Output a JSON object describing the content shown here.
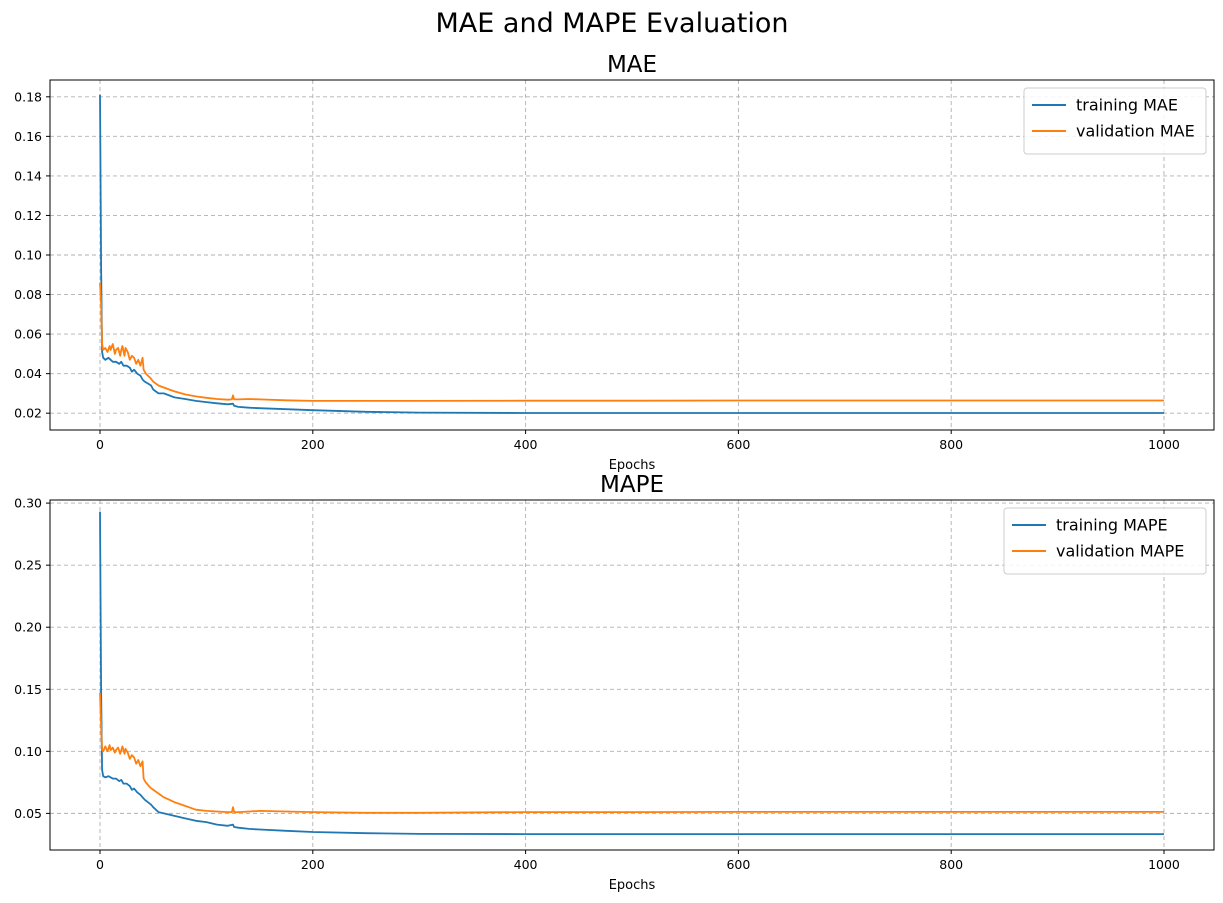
{
  "figure": {
    "title": "MAE and MAPE Evaluation"
  },
  "colors": {
    "training": "#1f77b4",
    "validation": "#ff7f0e",
    "grid": "#b0b0b0"
  },
  "chart_data": [
    {
      "type": "line",
      "title": "MAE",
      "xlabel": "Epochs",
      "ylabel": "",
      "xlim": [
        -47,
        1047
      ],
      "ylim": [
        0.0115,
        0.1885
      ],
      "xticks": [
        0,
        200,
        400,
        600,
        800,
        1000
      ],
      "yticks": [
        0.02,
        0.04,
        0.06,
        0.08,
        0.1,
        0.12,
        0.14,
        0.16,
        0.18
      ],
      "ytick_labels": [
        "0.02",
        "0.04",
        "0.06",
        "0.08",
        "0.10",
        "0.12",
        "0.14",
        "0.16",
        "0.18"
      ],
      "grid": true,
      "legend": "top-right",
      "series": [
        {
          "name": "training MAE",
          "x": [
            0,
            1,
            2,
            3,
            5,
            8,
            10,
            12,
            15,
            18,
            20,
            22,
            25,
            28,
            30,
            32,
            35,
            38,
            40,
            42,
            45,
            48,
            50,
            55,
            60,
            65,
            70,
            80,
            90,
            100,
            110,
            120,
            125,
            126,
            130,
            140,
            150,
            175,
            200,
            250,
            300,
            400,
            500,
            600,
            700,
            800,
            900,
            1000
          ],
          "y": [
            0.181,
            0.095,
            0.051,
            0.048,
            0.047,
            0.048,
            0.047,
            0.046,
            0.046,
            0.045,
            0.046,
            0.044,
            0.044,
            0.043,
            0.041,
            0.042,
            0.04,
            0.039,
            0.037,
            0.036,
            0.035,
            0.034,
            0.032,
            0.03,
            0.03,
            0.029,
            0.028,
            0.0272,
            0.0262,
            0.0256,
            0.025,
            0.0245,
            0.0248,
            0.0238,
            0.0232,
            0.0228,
            0.0225,
            0.022,
            0.0215,
            0.0207,
            0.0203,
            0.0201,
            0.0201,
            0.0201,
            0.0201,
            0.0201,
            0.0201,
            0.0201
          ]
        },
        {
          "name": "validation MAE",
          "x": [
            0,
            1,
            2,
            3,
            5,
            7,
            9,
            10,
            12,
            14,
            15,
            17,
            19,
            20,
            21,
            23,
            24,
            26,
            28,
            30,
            32,
            34,
            36,
            38,
            40,
            41,
            43,
            45,
            47,
            50,
            55,
            60,
            65,
            70,
            80,
            90,
            100,
            110,
            120,
            124,
            125,
            126,
            130,
            140,
            150,
            175,
            200,
            250,
            300,
            400,
            500,
            600,
            700,
            800,
            900,
            1000
          ],
          "y": [
            0.086,
            0.075,
            0.055,
            0.052,
            0.053,
            0.051,
            0.054,
            0.052,
            0.055,
            0.05,
            0.052,
            0.053,
            0.049,
            0.052,
            0.054,
            0.049,
            0.053,
            0.051,
            0.047,
            0.049,
            0.048,
            0.045,
            0.047,
            0.044,
            0.048,
            0.042,
            0.04,
            0.039,
            0.038,
            0.036,
            0.034,
            0.033,
            0.032,
            0.031,
            0.0295,
            0.0285,
            0.0278,
            0.0272,
            0.0268,
            0.027,
            0.029,
            0.027,
            0.027,
            0.0272,
            0.027,
            0.0265,
            0.0262,
            0.0262,
            0.0262,
            0.0263,
            0.0263,
            0.0264,
            0.0264,
            0.0264,
            0.0264,
            0.0264
          ]
        }
      ]
    },
    {
      "type": "line",
      "title": "MAPE",
      "xlabel": "Epochs",
      "ylabel": "",
      "xlim": [
        -47,
        1047
      ],
      "ylim": [
        0.0205,
        0.3025
      ],
      "xticks": [
        0,
        200,
        400,
        600,
        800,
        1000
      ],
      "yticks": [
        0.05,
        0.1,
        0.15,
        0.2,
        0.25,
        0.3
      ],
      "ytick_labels": [
        "0.05",
        "0.10",
        "0.15",
        "0.20",
        "0.25",
        "0.30"
      ],
      "grid": true,
      "legend": "top-right",
      "series": [
        {
          "name": "training MAPE",
          "x": [
            0,
            1,
            2,
            3,
            5,
            8,
            10,
            12,
            15,
            18,
            20,
            22,
            25,
            28,
            30,
            32,
            35,
            38,
            40,
            42,
            45,
            48,
            50,
            55,
            60,
            65,
            70,
            80,
            90,
            100,
            110,
            120,
            125,
            126,
            130,
            140,
            150,
            175,
            200,
            250,
            300,
            400,
            500,
            600,
            700,
            800,
            900,
            1000
          ],
          "y": [
            0.293,
            0.15,
            0.085,
            0.08,
            0.079,
            0.08,
            0.079,
            0.078,
            0.078,
            0.076,
            0.077,
            0.074,
            0.074,
            0.072,
            0.069,
            0.07,
            0.067,
            0.065,
            0.063,
            0.061,
            0.059,
            0.057,
            0.055,
            0.051,
            0.05,
            0.049,
            0.048,
            0.046,
            0.044,
            0.043,
            0.041,
            0.04,
            0.041,
            0.039,
            0.0385,
            0.0375,
            0.037,
            0.036,
            0.035,
            0.034,
            0.0335,
            0.0333,
            0.0333,
            0.0333,
            0.0333,
            0.0333,
            0.0333,
            0.0333
          ]
        },
        {
          "name": "validation MAPE",
          "x": [
            0,
            1,
            2,
            3,
            5,
            7,
            9,
            10,
            12,
            14,
            15,
            17,
            19,
            20,
            21,
            23,
            24,
            26,
            28,
            30,
            32,
            34,
            36,
            38,
            40,
            41,
            43,
            45,
            47,
            50,
            55,
            60,
            65,
            70,
            80,
            90,
            100,
            110,
            120,
            124,
            125,
            126,
            130,
            140,
            150,
            175,
            200,
            250,
            300,
            400,
            500,
            600,
            700,
            800,
            900,
            1000
          ],
          "y": [
            0.147,
            0.12,
            0.101,
            0.1,
            0.104,
            0.1,
            0.105,
            0.101,
            0.103,
            0.099,
            0.101,
            0.103,
            0.098,
            0.101,
            0.104,
            0.098,
            0.102,
            0.099,
            0.094,
            0.097,
            0.095,
            0.09,
            0.093,
            0.088,
            0.092,
            0.078,
            0.075,
            0.073,
            0.071,
            0.069,
            0.066,
            0.063,
            0.061,
            0.059,
            0.056,
            0.053,
            0.052,
            0.0515,
            0.051,
            0.051,
            0.055,
            0.051,
            0.051,
            0.0515,
            0.052,
            0.0515,
            0.051,
            0.0505,
            0.0505,
            0.051,
            0.051,
            0.0512,
            0.0512,
            0.0512,
            0.0512,
            0.0512
          ]
        }
      ]
    }
  ]
}
